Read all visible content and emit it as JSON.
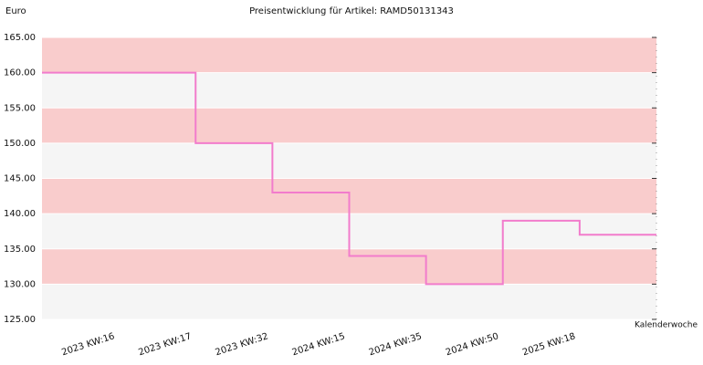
{
  "chart_data": {
    "type": "line",
    "step": "post",
    "title": "Preisentwicklung für Artikel: RAMD50131343",
    "y_label": "Euro",
    "x_label": "Kalenderwoche",
    "categories": [
      null,
      "2023 KW:16",
      "2023 KW:17",
      "2023 KW:32",
      "2024 KW:15",
      "2024 KW:35",
      "2024 KW:50",
      "2025 KW:18",
      null
    ],
    "series": [
      {
        "name": null,
        "color": "#f27ccc",
        "values": [
          160,
          160,
          150,
          143,
          134,
          130,
          139,
          137,
          137
        ]
      }
    ],
    "ylim": [
      125,
      165
    ],
    "yticks": [
      {
        "value": 125,
        "label": "125.00"
      },
      {
        "value": 130,
        "label": "130.00"
      },
      {
        "value": 135,
        "label": "135.00"
      },
      {
        "value": 140,
        "label": "140.00"
      },
      {
        "value": 145,
        "label": "145.00"
      },
      {
        "value": 150,
        "label": "150.00"
      },
      {
        "value": 155,
        "label": "155.00"
      },
      {
        "value": 160,
        "label": "160.00"
      },
      {
        "value": 165,
        "label": "165.00"
      }
    ],
    "band_colors": [
      "#f5f5f5",
      "#f9cccc"
    ],
    "grid": true
  }
}
